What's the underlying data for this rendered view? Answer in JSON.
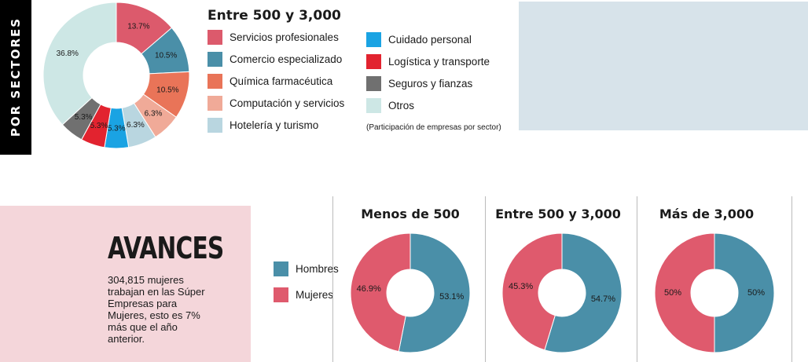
{
  "side_label": "POR SECTORES",
  "sectors": {
    "title": "Entre 500 y 3,000",
    "note": "(Participación de empresas por sector)"
  },
  "avances": {
    "title": "AVANCES",
    "text": "304,815 mujeres trabajan en las Súper Empresas para Mujeres, esto es 7% más que el año anterior."
  },
  "gender_legend": [
    "Hombres",
    "Mujeres"
  ],
  "colors": {
    "hombres": "#4a8fa8",
    "mujeres": "#df5a6d",
    "gray_panel": "#d7e3ea",
    "pink_panel": "#f4d6da"
  },
  "chart_data": [
    {
      "type": "pie",
      "title": "Entre 500 y 3,000",
      "categories": [
        "Servicios profesionales",
        "Comercio especializado",
        "Química farmacéutica",
        "Computación y servicios",
        "Hotelería y turismo",
        "Cuidado personal",
        "Logística y transporte",
        "Seguros y fianzas",
        "Otros"
      ],
      "values": [
        13.7,
        10.5,
        10.5,
        6.3,
        6.3,
        5.3,
        5.3,
        5.3,
        36.8
      ],
      "labels": [
        "13.7%",
        "10.5%",
        "10.5%",
        "6.3%",
        "6.3%",
        "5.3%",
        "5.3%",
        "5.3%",
        "36.8%"
      ],
      "colors": [
        "#dc5a6c",
        "#4a8fa8",
        "#e97458",
        "#f0aa98",
        "#b9d6e0",
        "#1aa3e3",
        "#e2232f",
        "#707070",
        "#cde7e5"
      ],
      "legend_placement": "right"
    },
    {
      "type": "pie",
      "title": "Menos de 500",
      "categories": [
        "Hombres",
        "Mujeres"
      ],
      "values": [
        53.1,
        46.9
      ],
      "labels": [
        "53.1%",
        "46.9%"
      ]
    },
    {
      "type": "pie",
      "title": "Entre 500 y 3,000",
      "categories": [
        "Hombres",
        "Mujeres"
      ],
      "values": [
        54.7,
        45.3
      ],
      "labels": [
        "54.7%",
        "45.3%"
      ]
    },
    {
      "type": "pie",
      "title": "Más de 3,000",
      "categories": [
        "Hombres",
        "Mujeres"
      ],
      "values": [
        50,
        50
      ],
      "labels": [
        "50%",
        "50%"
      ]
    }
  ]
}
